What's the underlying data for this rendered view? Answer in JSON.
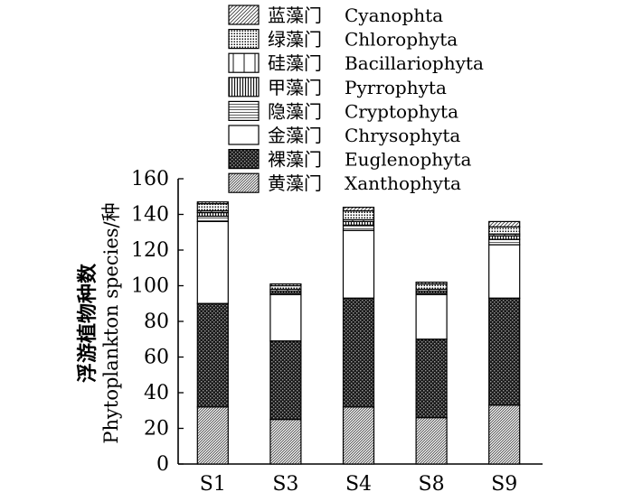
{
  "chart_data": {
    "type": "bar",
    "stacked": true,
    "categories": [
      "S1",
      "S3",
      "S4",
      "S8",
      "S9"
    ],
    "ylabel_cn": "浮游植物种数",
    "ylabel_en": "Phytoplankton species/种",
    "ylim": [
      0,
      160
    ],
    "yticks": [
      "0",
      "20",
      "40",
      "60",
      "80",
      "100",
      "120",
      "140",
      "160"
    ],
    "legend_position": "top",
    "series": [
      {
        "name_cn": "黄藻门",
        "name_en": "Xanthophyta",
        "pattern": "dense-diag",
        "values": [
          32,
          25,
          32,
          26,
          33
        ]
      },
      {
        "name_cn": "裸藻门",
        "name_en": "Euglenophyta",
        "pattern": "dark-check",
        "values": [
          58,
          44,
          61,
          44,
          60
        ]
      },
      {
        "name_cn": "金藻门",
        "name_en": "Chrysophyta",
        "pattern": "white",
        "values": [
          46,
          26,
          38,
          25,
          30
        ]
      },
      {
        "name_cn": "隐藻门",
        "name_en": "Cryptophyta",
        "pattern": "hlines",
        "values": [
          3,
          1,
          3,
          1,
          3
        ]
      },
      {
        "name_cn": "甲藻门",
        "name_en": "Pyrrophyta",
        "pattern": "vlines",
        "values": [
          2,
          1,
          2,
          1,
          2
        ]
      },
      {
        "name_cn": "硅藻门",
        "name_en": "Bacillariophyta",
        "pattern": "white-vline",
        "values": [
          1,
          1,
          1,
          1,
          1
        ]
      },
      {
        "name_cn": "绿藻门",
        "name_en": "Chlorophyta",
        "pattern": "dots",
        "values": [
          4,
          2,
          5,
          3,
          4
        ]
      },
      {
        "name_cn": "蓝藻门",
        "name_en": "Cyanophta",
        "pattern": "light-diag",
        "values": [
          1,
          1,
          2,
          1,
          3
        ]
      }
    ],
    "legend_order": [
      "Cyanophta",
      "Chlorophyta",
      "Bacillariophyta",
      "Pyrrophyta",
      "Cryptophyta",
      "Chrysophyta",
      "Euglenophyta",
      "Xanthophyta"
    ]
  }
}
